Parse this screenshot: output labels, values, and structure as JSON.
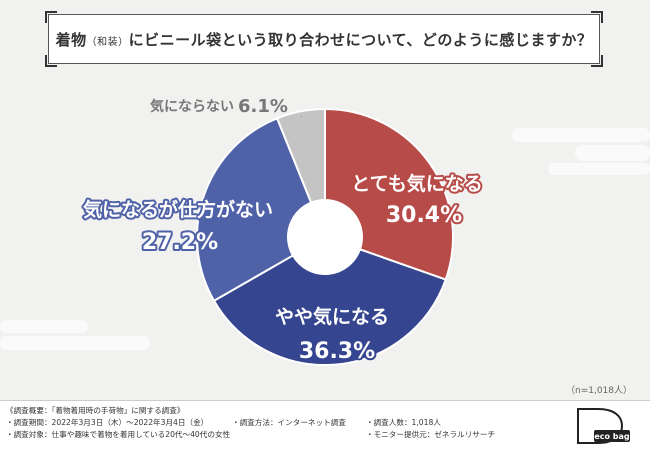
{
  "title": {
    "pre": "着物",
    "paren": "（和装）",
    "post": "にビニール袋という取り合わせについて、どのように感じますか？"
  },
  "chart_data": {
    "type": "pie",
    "donut": true,
    "start_angle_deg": 0,
    "direction": "clockwise",
    "slices": [
      {
        "label": "とても気になる",
        "value": 30.4,
        "display": "30.4%",
        "color": "#b74b48"
      },
      {
        "label": "やや気になる",
        "value": 36.3,
        "display": "36.3%",
        "color": "#35458f"
      },
      {
        "label": "気になるが仕方がない",
        "value": 27.2,
        "display": "27.2%",
        "color": "#4f62a8"
      },
      {
        "label": "気にならない",
        "value": 6.1,
        "display": "6.1%",
        "color": "#c4c4c4"
      }
    ]
  },
  "sample_note": "（n=1,018人）",
  "footer": {
    "overview": "《調査概要：「着物着用時の手荷物」に関する調査》",
    "period": "・調査期間：2022年3月3日（木）〜2022年3月4日（金）",
    "method": "・調査方法：インターネット調査",
    "count": "・調査人数：1,018人",
    "target": "・調査対象：仕事や趣味で着物を着用している20代〜40代の女性",
    "provider": "・モニター提供元：ゼネラルリサーチ"
  },
  "logo": {
    "text": "eco bag",
    "icon": "deco-bag-logo"
  }
}
